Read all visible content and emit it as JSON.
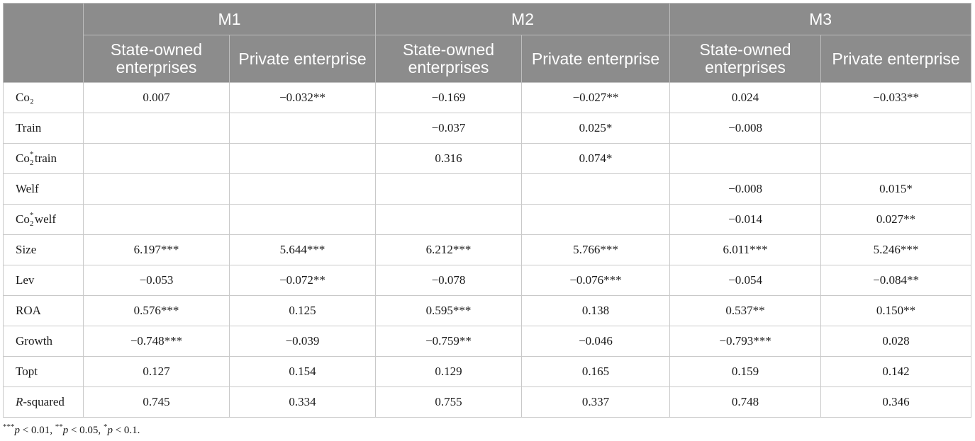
{
  "header": {
    "models": [
      "M1",
      "M2",
      "M3"
    ],
    "subheaders": [
      "State-owned enterprises",
      "Private enterprise",
      "State-owned enterprises",
      "Private enterprise",
      "State-owned enterprises",
      "Private enterprise"
    ]
  },
  "rows": [
    {
      "label": "Co₂",
      "cells": [
        "0.007",
        "−0.032**",
        "−0.169",
        "−0.027**",
        "0.024",
        "−0.033**"
      ]
    },
    {
      "label": "Train",
      "cells": [
        "",
        "",
        "−0.037",
        "0.025*",
        "−0.008",
        ""
      ]
    },
    {
      "label_base": "Co",
      "label_sub": "2",
      "label_sup": "*",
      "label_rest": "train",
      "cells": [
        "",
        "",
        "0.316",
        "0.074*",
        "",
        ""
      ]
    },
    {
      "label": "Welf",
      "cells": [
        "",
        "",
        "",
        "",
        "−0.008",
        "0.015*"
      ]
    },
    {
      "label_base": "Co",
      "label_sub": "2",
      "label_sup": "*",
      "label_rest": "welf",
      "cells": [
        "",
        "",
        "",
        "",
        "−0.014",
        "0.027**"
      ]
    },
    {
      "label": "Size",
      "cells": [
        "6.197***",
        "5.644***",
        "6.212***",
        "5.766***",
        "6.011***",
        "5.246***"
      ]
    },
    {
      "label": "Lev",
      "cells": [
        "−0.053",
        "−0.072**",
        "−0.078",
        "−0.076***",
        "−0.054",
        "−0.084**"
      ]
    },
    {
      "label": "ROA",
      "cells": [
        "0.576***",
        "0.125",
        "0.595***",
        "0.138",
        "0.537**",
        "0.150**"
      ]
    },
    {
      "label": "Growth",
      "cells": [
        "−0.748***",
        "−0.039",
        "−0.759**",
        "−0.046",
        "−0.793***",
        "0.028"
      ]
    },
    {
      "label": "Topt",
      "cells": [
        "0.127",
        "0.154",
        "0.129",
        "0.165",
        "0.159",
        "0.142"
      ]
    },
    {
      "label_italic": "R",
      "label_rest": "-squared",
      "cells": [
        "0.745",
        "0.334",
        "0.755",
        "0.337",
        "0.748",
        "0.346"
      ]
    }
  ],
  "footnote": {
    "s1": "***",
    "p1": "p",
    "t1": " < 0.01, ",
    "s2": "**",
    "p2": "p",
    "t2": " < 0.05, ",
    "s3": "*",
    "p3": "p",
    "t3": " < 0.1."
  }
}
